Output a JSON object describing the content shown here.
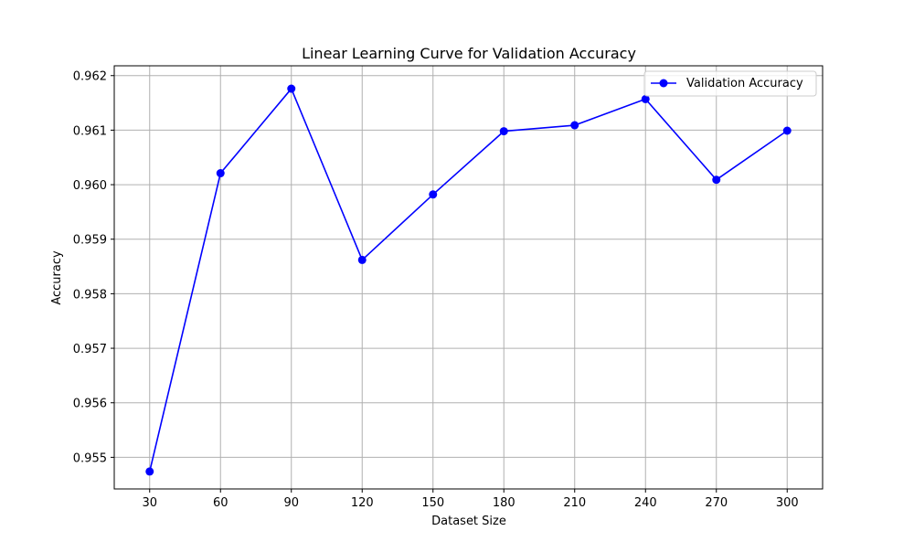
{
  "chart_data": {
    "type": "line",
    "title": "Linear Learning Curve for Validation Accuracy",
    "xlabel": "Dataset Size",
    "ylabel": "Accuracy",
    "x": [
      30,
      60,
      90,
      120,
      150,
      180,
      210,
      240,
      270,
      300
    ],
    "x_ticks": [
      "30",
      "60",
      "90",
      "120",
      "150",
      "180",
      "210",
      "240",
      "270",
      "300"
    ],
    "y_ticks": [
      "0.955",
      "0.956",
      "0.957",
      "0.958",
      "0.959",
      "0.960",
      "0.961",
      "0.962"
    ],
    "xlim": [
      15,
      315
    ],
    "ylim": [
      0.95442,
      0.96218
    ],
    "grid": true,
    "legend_position": "top-right",
    "series": [
      {
        "name": "Validation Accuracy",
        "color": "#0000ff",
        "marker": "circle",
        "values": [
          0.95474,
          0.96021,
          0.96176,
          0.95862,
          0.95982,
          0.96098,
          0.96109,
          0.96157,
          0.96009,
          0.96099
        ]
      }
    ]
  }
}
